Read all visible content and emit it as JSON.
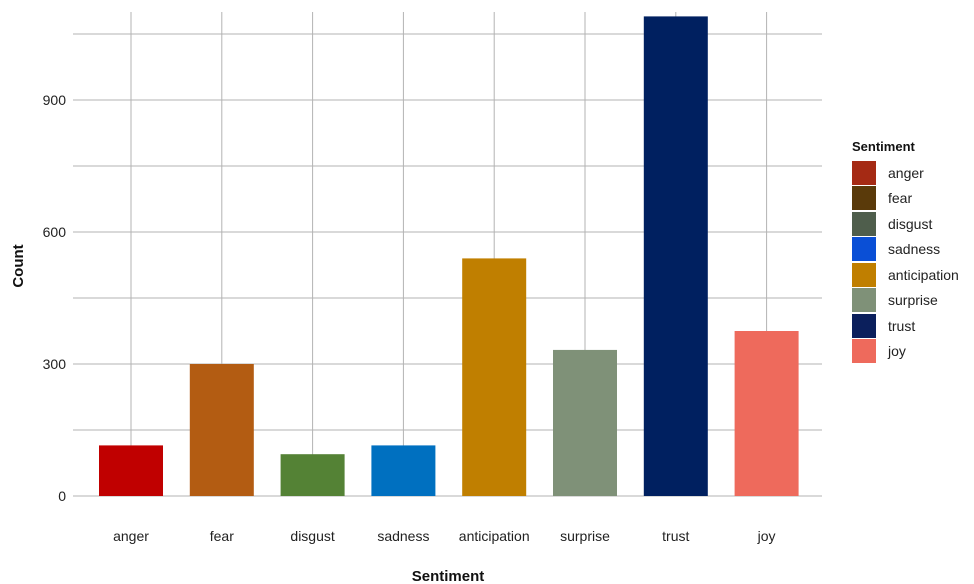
{
  "chart_data": {
    "type": "bar",
    "title": "",
    "xlabel": "Sentiment",
    "ylabel": "Count",
    "categories": [
      "anger",
      "fear",
      "disgust",
      "sadness",
      "anticipation",
      "surprise",
      "trust",
      "joy"
    ],
    "values": [
      115,
      300,
      95,
      115,
      540,
      332,
      1090,
      375
    ],
    "bar_colors": [
      "#c00000",
      "#b35c12",
      "#548235",
      "#0070c0",
      "#c07f00",
      "#7f9178",
      "#002060",
      "#ee6a5c"
    ],
    "ylim": [
      0,
      1100
    ],
    "yticks": [
      0,
      300,
      600,
      900
    ],
    "grid": true,
    "legend": {
      "title": "Sentiment",
      "position": "right",
      "items": [
        {
          "label": "anger",
          "color": "#a52a14"
        },
        {
          "label": "fear",
          "color": "#5a3a0a"
        },
        {
          "label": "disgust",
          "color": "#4f5e4c"
        },
        {
          "label": "sadness",
          "color": "#0a4fd6"
        },
        {
          "label": "anticipation",
          "color": "#c07f00"
        },
        {
          "label": "surprise",
          "color": "#7f9178"
        },
        {
          "label": "trust",
          "color": "#0b1f5c"
        },
        {
          "label": "joy",
          "color": "#ee6a5c"
        }
      ]
    }
  }
}
